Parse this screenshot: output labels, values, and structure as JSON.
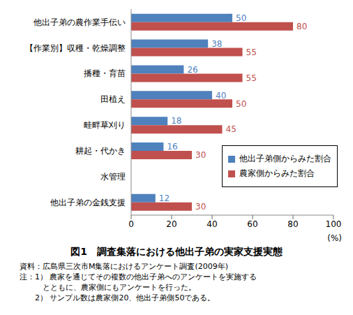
{
  "chart_data": {
    "type": "bar",
    "orientation": "horizontal",
    "title": "図1　調査集落における他出子弟の実家支援実態",
    "x_label": "(%)",
    "categories": [
      "他出子弟の農作業手伝い",
      "【作業別】収穫・乾燥調整",
      "播種・育苗",
      "田植え",
      "畦畔草刈り",
      "耕起・代かき",
      "水管理",
      "他出子弟の金銭支援"
    ],
    "series": [
      {
        "name": "他出子弟側からみた割合",
        "color": "#4f81bd",
        "values": [
          50,
          38,
          26,
          40,
          18,
          16,
          0,
          12
        ]
      },
      {
        "name": "農家側からみた割合",
        "color": "#c0504d",
        "values": [
          80,
          55,
          55,
          50,
          45,
          30,
          0,
          30
        ]
      }
    ],
    "xlim": [
      0,
      100
    ],
    "xticks": [
      0,
      20,
      40,
      60,
      80,
      100
    ],
    "grid": false,
    "data_labels": true,
    "legend": "lower right",
    "source": "資料：広島県三次市M集落におけるアンケート調査(2009年)",
    "notes": [
      "注：1） 農家を通じてその複数の他出子弟へのアンケートを実施する",
      "　　　とともに、農家側にもアンケートを行った。",
      "　　2） サンプル数は農家側20、他出子弟側50である。"
    ]
  }
}
